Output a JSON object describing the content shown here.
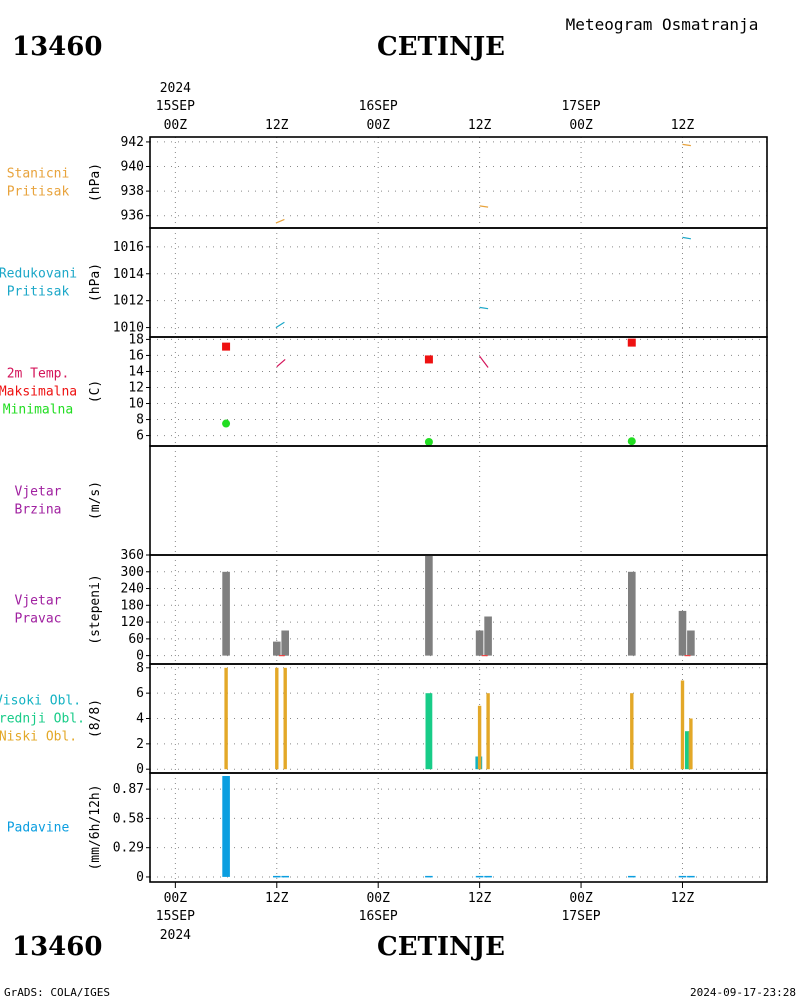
{
  "header": {
    "station_id": "13460",
    "station_name": "CETINJE",
    "product_title": "Meteogram Osmatranja"
  },
  "footer": {
    "software": "GrADS: COLA/IGES",
    "timestamp": "2024-09-17-23:28"
  },
  "time_axis": {
    "year_label": "2024",
    "ticks": [
      {
        "hour": 0,
        "label": "00Z",
        "date": "15SEP"
      },
      {
        "hour": 12,
        "label": "12Z",
        "date": ""
      },
      {
        "hour": 24,
        "label": "00Z",
        "date": "16SEP"
      },
      {
        "hour": 36,
        "label": "12Z",
        "date": ""
      },
      {
        "hour": 48,
        "label": "00Z",
        "date": "17SEP"
      },
      {
        "hour": 60,
        "label": "12Z",
        "date": ""
      }
    ]
  },
  "colors": {
    "station_pressure": "#e8a33c",
    "reduced_pressure": "#1ba7c8",
    "temperature": "#d4145a",
    "tmax": "#ee1111",
    "tmin": "#22dd22",
    "wind_speed": "#a020a0",
    "wind_dir": "#7f7f7f",
    "high_cloud": "#12b2c2",
    "mid_cloud": "#18cc88",
    "low_cloud": "#e3a828",
    "precip": "#0b9ee0",
    "grid": "#888888"
  },
  "chart_data": {
    "type": "meteogram",
    "x_unit": "hours since 2024-09-15 00Z",
    "xlim": [
      -3,
      70
    ],
    "panels": [
      {
        "id": "station_pressure",
        "labels": [
          "Stanicni",
          "Pritisak"
        ],
        "label_colors": [
          "#e8a33c",
          "#e8a33c"
        ],
        "ylabel": "(hPa)",
        "ylim": [
          935.0,
          942.4
        ],
        "yticks": [
          936,
          938,
          940,
          942
        ],
        "ytick_labels": [
          "936",
          "938",
          "940",
          "942"
        ],
        "series": [
          {
            "kind": "line",
            "color": "#e8a33c",
            "points": [
              [
                11.9,
                935.4
              ],
              [
                12.9,
                935.7
              ]
            ]
          },
          {
            "kind": "line",
            "color": "#e8a33c",
            "points": [
              [
                36.0,
                936.8
              ],
              [
                37.0,
                936.7
              ]
            ]
          },
          {
            "kind": "line",
            "color": "#e8a33c",
            "points": [
              [
                60.0,
                941.8
              ],
              [
                61.0,
                941.7
              ]
            ]
          }
        ]
      },
      {
        "id": "reduced_pressure",
        "labels": [
          "Redukovani",
          "Pritisak"
        ],
        "label_colors": [
          "#1ba7c8",
          "#1ba7c8"
        ],
        "ylabel": "(hPa)",
        "ylim": [
          1009.3,
          1017.4
        ],
        "yticks": [
          1010,
          1012,
          1014,
          1016
        ],
        "ytick_labels": [
          "1010",
          "1012",
          "1014",
          "1016"
        ],
        "series": [
          {
            "kind": "line",
            "color": "#1ba7c8",
            "points": [
              [
                11.9,
                1010.0
              ],
              [
                12.9,
                1010.4
              ]
            ]
          },
          {
            "kind": "line",
            "color": "#1ba7c8",
            "points": [
              [
                36.0,
                1011.5
              ],
              [
                37.0,
                1011.4
              ]
            ]
          },
          {
            "kind": "line",
            "color": "#1ba7c8",
            "points": [
              [
                60.0,
                1016.7
              ],
              [
                61.0,
                1016.6
              ]
            ]
          }
        ]
      },
      {
        "id": "temperature",
        "labels": [
          "2m Temp.",
          "Maksimalna",
          "Minimalna"
        ],
        "label_colors": [
          "#d4145a",
          "#ee1111",
          "#22dd22"
        ],
        "ylabel": "(C)",
        "ylim": [
          4.7,
          18.3
        ],
        "yticks": [
          6,
          8,
          10,
          12,
          14,
          16,
          18
        ],
        "ytick_labels": [
          "6",
          "8",
          "10",
          "12",
          "14",
          "16",
          "18"
        ],
        "series": [
          {
            "kind": "line",
            "color": "#d4145a",
            "points": [
              [
                12.0,
                14.6
              ],
              [
                13.0,
                15.5
              ]
            ]
          },
          {
            "kind": "line",
            "color": "#d4145a",
            "points": [
              [
                36.0,
                15.9
              ],
              [
                37.0,
                14.5
              ]
            ]
          },
          {
            "kind": "square",
            "color": "#ee1111",
            "points": [
              [
                6.0,
                17.1
              ],
              [
                30.0,
                15.5
              ],
              [
                54.0,
                17.6
              ]
            ]
          },
          {
            "kind": "circle",
            "color": "#22dd22",
            "points": [
              [
                6.0,
                7.5
              ],
              [
                30.0,
                5.2
              ],
              [
                54.0,
                5.3
              ]
            ]
          }
        ]
      },
      {
        "id": "wind_speed",
        "labels": [
          "Vjetar",
          "Brzina"
        ],
        "label_colors": [
          "#a020a0",
          "#a020a0"
        ],
        "ylabel": "(m/s)",
        "ylim": [
          0,
          10
        ],
        "yticks": [],
        "ytick_labels": [],
        "series": []
      },
      {
        "id": "wind_direction",
        "labels": [
          "Vjetar",
          "Pravac"
        ],
        "label_colors": [
          "#a020a0",
          "#a020a0"
        ],
        "ylabel": "(stepeni)",
        "ylim": [
          -30,
          360
        ],
        "yticks": [
          0,
          60,
          120,
          180,
          240,
          300,
          360
        ],
        "ytick_labels": [
          "0",
          "60",
          "120",
          "180",
          "240",
          "300",
          "360"
        ],
        "series": [
          {
            "kind": "bar",
            "color": "#7f7f7f",
            "width": 0.9,
            "points": [
              [
                6.0,
                300
              ],
              [
                12.0,
                50
              ],
              [
                13.0,
                90
              ],
              [
                30.0,
                360
              ],
              [
                36.0,
                90
              ],
              [
                37.0,
                140
              ],
              [
                54.0,
                300
              ],
              [
                60.0,
                160
              ],
              [
                61.0,
                90
              ]
            ]
          },
          {
            "kind": "tick",
            "color": "#ee4444",
            "points": [
              [
                12.6,
                0
              ],
              [
                36.6,
                0
              ],
              [
                60.6,
                0
              ]
            ]
          }
        ]
      },
      {
        "id": "clouds",
        "labels": [
          "Visoki Obl.",
          "Srednji Obl.",
          "Niski Obl."
        ],
        "label_colors": [
          "#12b2c2",
          "#18cc88",
          "#e3a828"
        ],
        "ylabel": "(8/8)",
        "ylim": [
          -0.3,
          8.3
        ],
        "yticks": [
          0,
          2,
          4,
          6,
          8
        ],
        "ytick_labels": [
          "0",
          "2",
          "4",
          "6",
          "8"
        ],
        "series": [
          {
            "kind": "bar",
            "color": "#12b2c2",
            "width": 0.8,
            "points": [
              [
                35.9,
                1
              ]
            ]
          },
          {
            "kind": "bar",
            "color": "#18cc88",
            "width": 0.8,
            "points": [
              [
                30.0,
                6
              ],
              [
                60.7,
                3
              ]
            ]
          },
          {
            "kind": "bar",
            "color": "#8dbb55",
            "width": 0.4,
            "points": [
              [
                60.9,
                3
              ]
            ]
          },
          {
            "kind": "bar",
            "color": "#e3a828",
            "width": 0.4,
            "points": [
              [
                6.0,
                8
              ],
              [
                12.0,
                8
              ],
              [
                13.0,
                8
              ],
              [
                36.0,
                5
              ],
              [
                37.0,
                6
              ],
              [
                54.0,
                6
              ],
              [
                60.0,
                7
              ],
              [
                61.0,
                4
              ]
            ]
          }
        ]
      },
      {
        "id": "precip",
        "labels": [
          "Padavine"
        ],
        "label_colors": [
          "#0b9ee0"
        ],
        "ylabel": "(mm/6h/12h)",
        "ylim": [
          -0.05,
          1.03
        ],
        "yticks": [
          0,
          0.29,
          0.58,
          0.87
        ],
        "ytick_labels": [
          "0",
          "0.29",
          "0.58",
          "0.87"
        ],
        "series": [
          {
            "kind": "bar",
            "color": "#0b9ee0",
            "width": 0.9,
            "points": [
              [
                6.0,
                1.0
              ],
              [
                12.0,
                0.01
              ],
              [
                13.0,
                0.01
              ],
              [
                30.0,
                0.01
              ],
              [
                36.0,
                0.01
              ],
              [
                37.0,
                0.01
              ],
              [
                54.0,
                0.01
              ],
              [
                60.0,
                0.01
              ],
              [
                61.0,
                0.01
              ]
            ]
          }
        ]
      }
    ]
  }
}
